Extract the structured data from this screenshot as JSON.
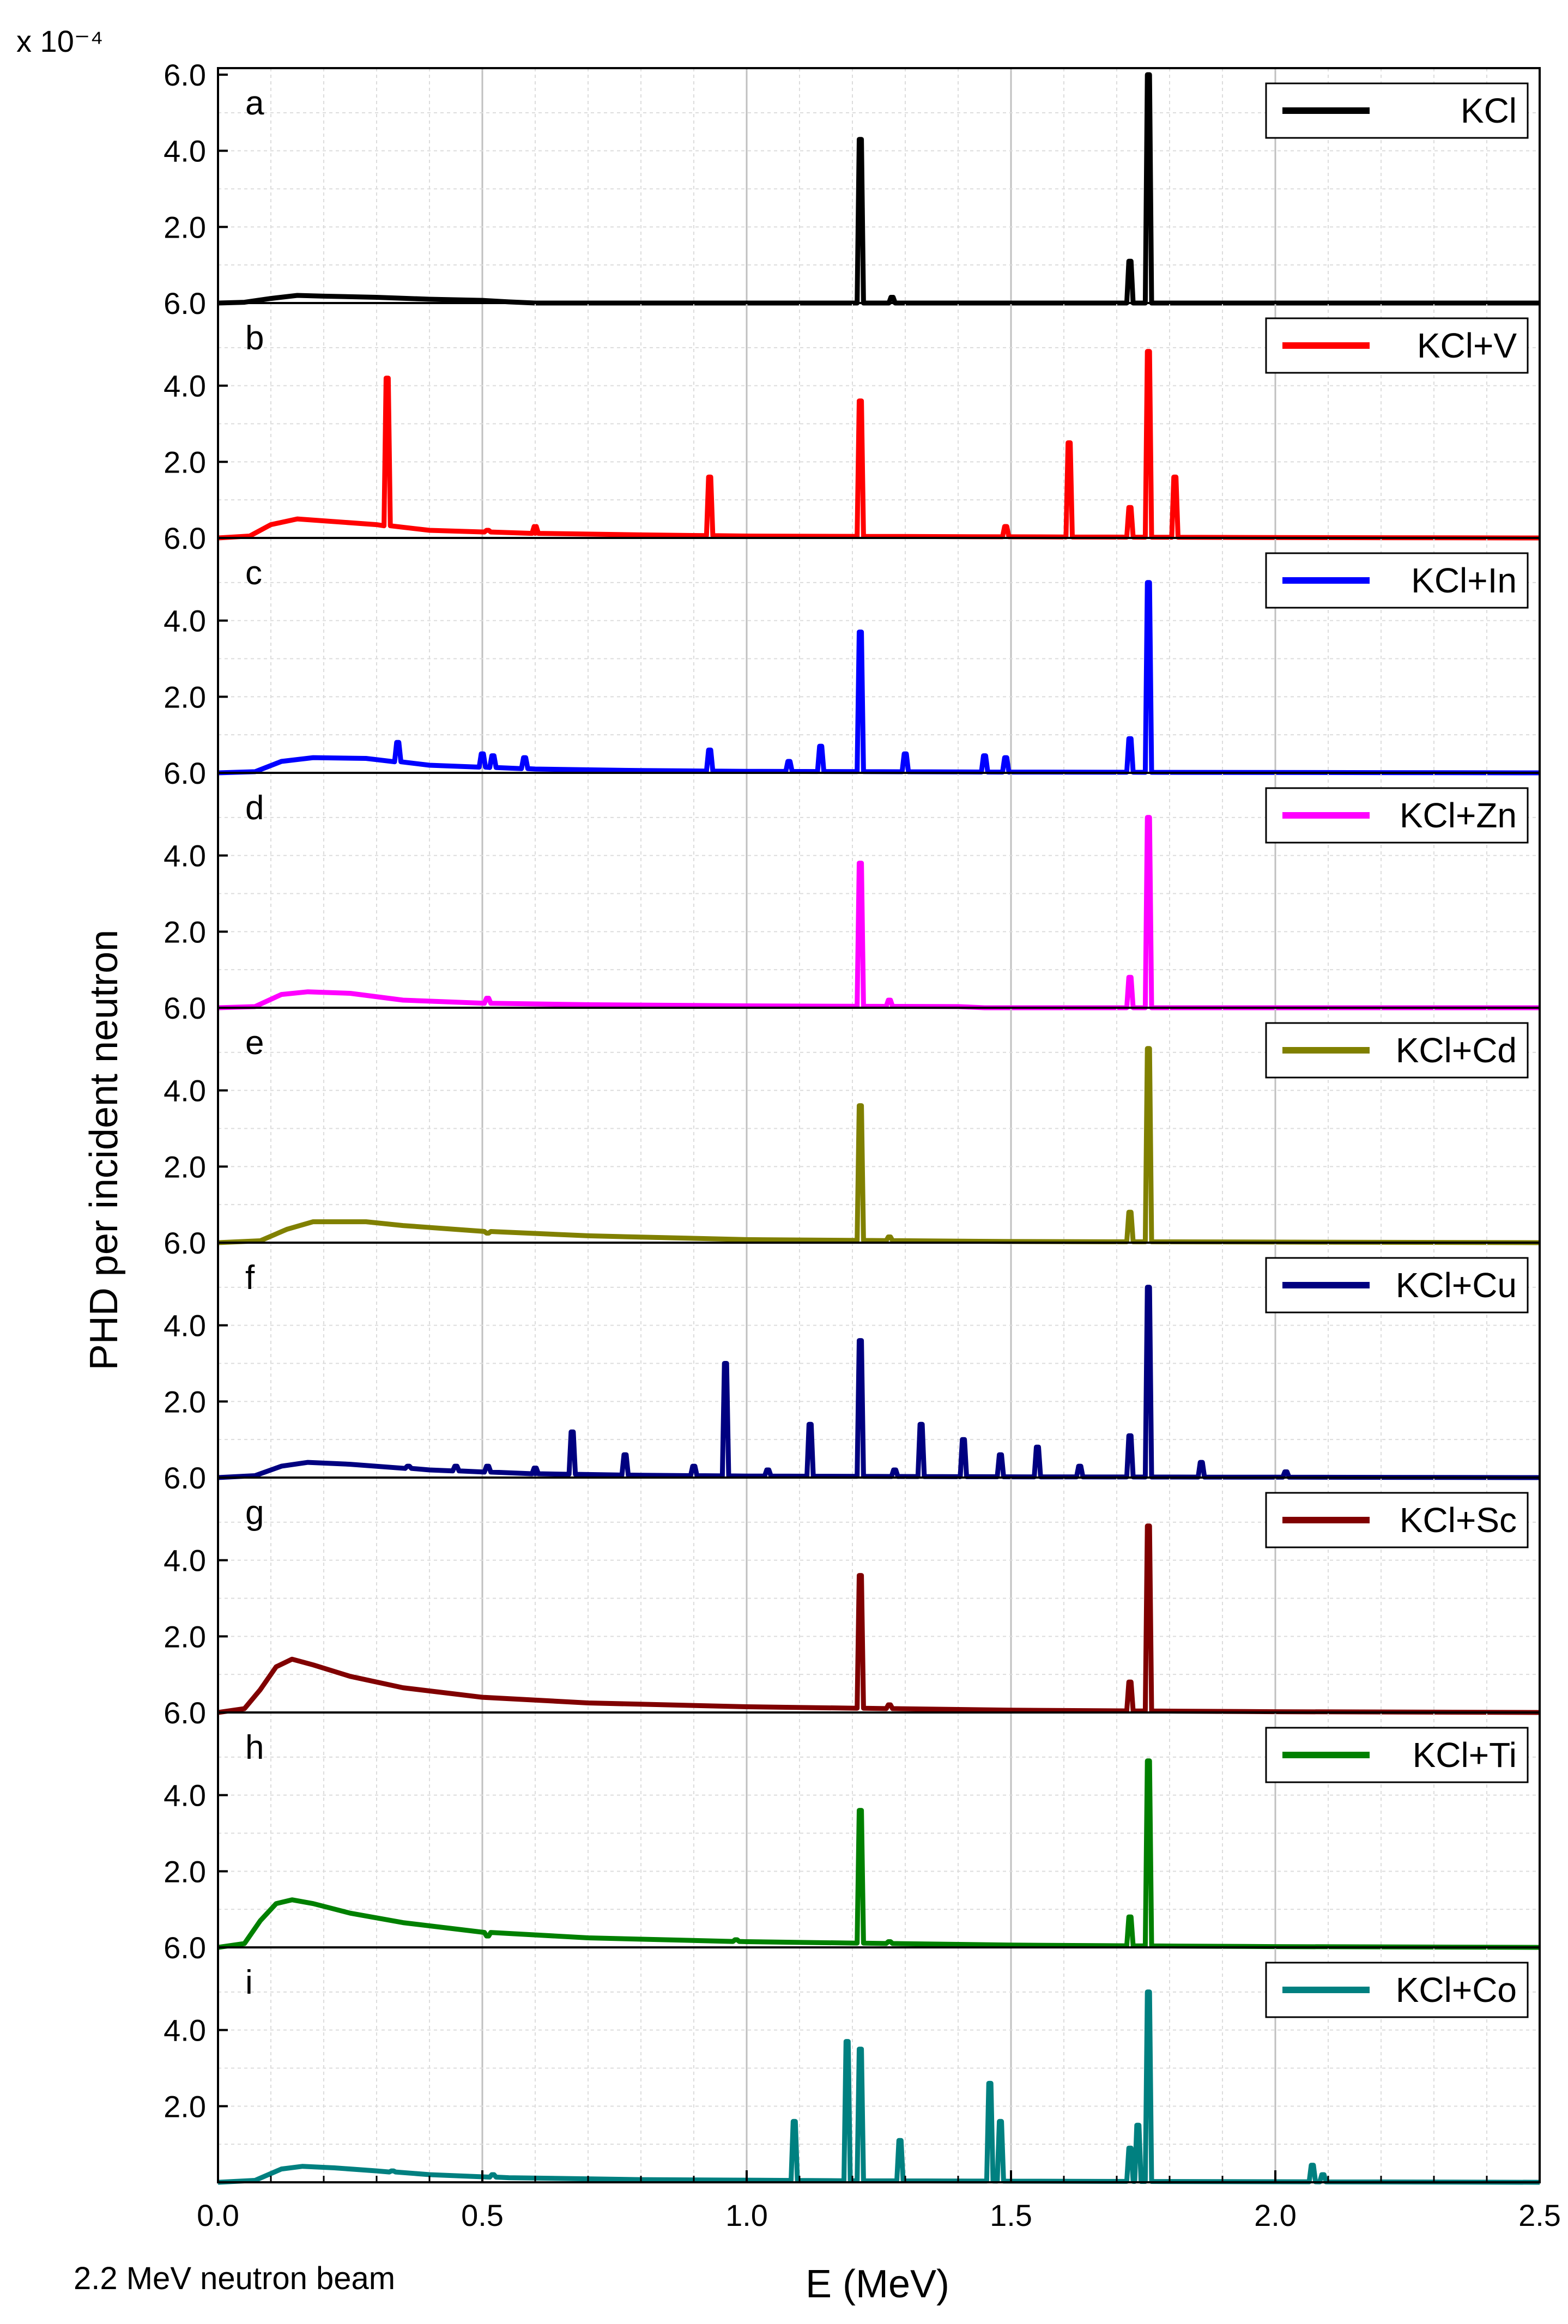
{
  "chart_data": {
    "type": "line",
    "layout": "stacked-panels",
    "x_axis": {
      "label": "E (MeV)",
      "range": [
        0.0,
        2.5
      ],
      "ticks": [
        "0.0",
        "0.5",
        "1.0",
        "1.5",
        "2.0",
        "2.5"
      ]
    },
    "y_axis": {
      "label": "PHD per incident neutron",
      "scale_multiplier": "x 10⁻⁴",
      "range": [
        0.0,
        6.0
      ],
      "tick_labels": [
        "6.0",
        "4.0",
        "2.0"
      ],
      "bottom_tick_label": "6.0"
    },
    "grid": true,
    "legend_placement": "top-right of each panel",
    "note": "2.2 MeV neutron beam",
    "panels": [
      {
        "letter": "a",
        "legend": "KCl",
        "color": "#000000",
        "continuum": [
          [
            0.0,
            0.0
          ],
          [
            0.05,
            0.02
          ],
          [
            0.1,
            0.12
          ],
          [
            0.15,
            0.2
          ],
          [
            0.2,
            0.18
          ],
          [
            0.3,
            0.15
          ],
          [
            0.4,
            0.1
          ],
          [
            0.5,
            0.07
          ],
          [
            0.55,
            0.03
          ],
          [
            0.6,
            0.0
          ],
          [
            2.5,
            0.0
          ]
        ],
        "peaks": [
          [
            1.215,
            4.3
          ],
          [
            1.275,
            0.15
          ],
          [
            1.725,
            1.1
          ],
          [
            1.76,
            6.0
          ]
        ]
      },
      {
        "letter": "b",
        "legend": "KCl+V",
        "color": "#ff0000",
        "continuum": [
          [
            0.0,
            0.0
          ],
          [
            0.06,
            0.05
          ],
          [
            0.1,
            0.35
          ],
          [
            0.15,
            0.5
          ],
          [
            0.2,
            0.45
          ],
          [
            0.3,
            0.35
          ],
          [
            0.4,
            0.2
          ],
          [
            0.6,
            0.12
          ],
          [
            0.8,
            0.08
          ],
          [
            1.0,
            0.05
          ],
          [
            1.5,
            0.03
          ],
          [
            2.0,
            0.01
          ],
          [
            2.5,
            0.0
          ]
        ],
        "peaks": [
          [
            0.32,
            4.2
          ],
          [
            0.51,
            0.2
          ],
          [
            0.6,
            0.3
          ],
          [
            0.93,
            1.6
          ],
          [
            1.215,
            3.6
          ],
          [
            1.49,
            0.3
          ],
          [
            1.61,
            2.5
          ],
          [
            1.725,
            0.8
          ],
          [
            1.76,
            4.9
          ],
          [
            1.81,
            1.6
          ]
        ]
      },
      {
        "letter": "c",
        "legend": "KCl+In",
        "color": "#0000ff",
        "continuum": [
          [
            0.0,
            0.0
          ],
          [
            0.07,
            0.03
          ],
          [
            0.12,
            0.3
          ],
          [
            0.18,
            0.4
          ],
          [
            0.28,
            0.38
          ],
          [
            0.4,
            0.2
          ],
          [
            0.6,
            0.1
          ],
          [
            0.8,
            0.06
          ],
          [
            1.0,
            0.04
          ],
          [
            1.5,
            0.02
          ],
          [
            2.5,
            0.0
          ]
        ],
        "peaks": [
          [
            0.34,
            0.8
          ],
          [
            0.5,
            0.5
          ],
          [
            0.52,
            0.45
          ],
          [
            0.58,
            0.4
          ],
          [
            0.93,
            0.6
          ],
          [
            1.08,
            0.3
          ],
          [
            1.14,
            0.7
          ],
          [
            1.215,
            3.7
          ],
          [
            1.3,
            0.5
          ],
          [
            1.45,
            0.45
          ],
          [
            1.49,
            0.4
          ],
          [
            1.725,
            0.9
          ],
          [
            1.76,
            5.0
          ]
        ]
      },
      {
        "letter": "d",
        "legend": "KCl+Zn",
        "color": "#ff00ff",
        "continuum": [
          [
            0.0,
            0.0
          ],
          [
            0.07,
            0.03
          ],
          [
            0.12,
            0.35
          ],
          [
            0.17,
            0.42
          ],
          [
            0.25,
            0.38
          ],
          [
            0.35,
            0.2
          ],
          [
            0.5,
            0.12
          ],
          [
            0.7,
            0.08
          ],
          [
            1.0,
            0.05
          ],
          [
            1.4,
            0.03
          ],
          [
            1.45,
            0.0
          ],
          [
            2.5,
            0.0
          ]
        ],
        "peaks": [
          [
            0.51,
            0.25
          ],
          [
            1.215,
            3.8
          ],
          [
            1.27,
            0.2
          ],
          [
            1.725,
            0.8
          ],
          [
            1.76,
            5.0
          ]
        ]
      },
      {
        "letter": "e",
        "legend": "KCl+Cd",
        "color": "#808000",
        "continuum": [
          [
            0.0,
            0.0
          ],
          [
            0.08,
            0.05
          ],
          [
            0.13,
            0.35
          ],
          [
            0.18,
            0.55
          ],
          [
            0.28,
            0.55
          ],
          [
            0.35,
            0.45
          ],
          [
            0.5,
            0.3
          ],
          [
            0.7,
            0.18
          ],
          [
            1.0,
            0.08
          ],
          [
            1.5,
            0.03
          ],
          [
            2.5,
            0.0
          ]
        ],
        "peaks": [
          [
            0.51,
            0.25
          ],
          [
            1.215,
            3.6
          ],
          [
            1.27,
            0.15
          ],
          [
            1.725,
            0.8
          ],
          [
            1.76,
            5.1
          ]
        ]
      },
      {
        "letter": "f",
        "legend": "KCl+Cu",
        "color": "#000080",
        "continuum": [
          [
            0.0,
            0.0
          ],
          [
            0.07,
            0.05
          ],
          [
            0.12,
            0.3
          ],
          [
            0.17,
            0.4
          ],
          [
            0.25,
            0.35
          ],
          [
            0.4,
            0.2
          ],
          [
            0.6,
            0.1
          ],
          [
            0.8,
            0.06
          ],
          [
            1.0,
            0.04
          ],
          [
            1.5,
            0.02
          ],
          [
            2.5,
            0.0
          ]
        ],
        "peaks": [
          [
            0.36,
            0.3
          ],
          [
            0.45,
            0.3
          ],
          [
            0.51,
            0.3
          ],
          [
            0.6,
            0.25
          ],
          [
            0.67,
            1.2
          ],
          [
            0.77,
            0.6
          ],
          [
            0.9,
            0.3
          ],
          [
            0.96,
            3.0
          ],
          [
            1.04,
            0.2
          ],
          [
            1.12,
            1.4
          ],
          [
            1.215,
            3.6
          ],
          [
            1.28,
            0.2
          ],
          [
            1.33,
            1.4
          ],
          [
            1.41,
            1.0
          ],
          [
            1.48,
            0.6
          ],
          [
            1.55,
            0.8
          ],
          [
            1.63,
            0.3
          ],
          [
            1.725,
            1.1
          ],
          [
            1.76,
            5.0
          ],
          [
            1.86,
            0.4
          ],
          [
            2.02,
            0.15
          ]
        ]
      },
      {
        "letter": "g",
        "legend": "KCl+Sc",
        "color": "#800000",
        "continuum": [
          [
            0.0,
            0.0
          ],
          [
            0.05,
            0.1
          ],
          [
            0.08,
            0.6
          ],
          [
            0.11,
            1.2
          ],
          [
            0.14,
            1.4
          ],
          [
            0.18,
            1.25
          ],
          [
            0.25,
            0.95
          ],
          [
            0.35,
            0.65
          ],
          [
            0.5,
            0.4
          ],
          [
            0.7,
            0.25
          ],
          [
            1.0,
            0.15
          ],
          [
            1.5,
            0.06
          ],
          [
            2.0,
            0.02
          ],
          [
            2.5,
            0.0
          ]
        ],
        "peaks": [
          [
            1.215,
            3.6
          ],
          [
            1.27,
            0.2
          ],
          [
            1.725,
            0.8
          ],
          [
            1.76,
            4.9
          ]
        ]
      },
      {
        "letter": "h",
        "legend": "KCl+Ti",
        "color": "#008000",
        "continuum": [
          [
            0.0,
            0.0
          ],
          [
            0.05,
            0.1
          ],
          [
            0.08,
            0.7
          ],
          [
            0.11,
            1.15
          ],
          [
            0.14,
            1.25
          ],
          [
            0.18,
            1.15
          ],
          [
            0.25,
            0.9
          ],
          [
            0.35,
            0.65
          ],
          [
            0.5,
            0.4
          ],
          [
            0.7,
            0.25
          ],
          [
            1.0,
            0.15
          ],
          [
            1.5,
            0.06
          ],
          [
            2.0,
            0.02
          ],
          [
            2.5,
            0.0
          ]
        ],
        "peaks": [
          [
            0.51,
            0.3
          ],
          [
            0.98,
            0.2
          ],
          [
            1.215,
            3.6
          ],
          [
            1.27,
            0.15
          ],
          [
            1.725,
            0.8
          ],
          [
            1.76,
            4.9
          ]
        ]
      },
      {
        "letter": "i",
        "legend": "KCl+Co",
        "color": "#008080",
        "continuum": [
          [
            0.0,
            0.0
          ],
          [
            0.07,
            0.05
          ],
          [
            0.12,
            0.35
          ],
          [
            0.16,
            0.42
          ],
          [
            0.22,
            0.38
          ],
          [
            0.3,
            0.3
          ],
          [
            0.4,
            0.2
          ],
          [
            0.55,
            0.12
          ],
          [
            0.8,
            0.07
          ],
          [
            1.2,
            0.04
          ],
          [
            1.8,
            0.02
          ],
          [
            2.5,
            0.0
          ]
        ],
        "peaks": [
          [
            0.33,
            0.3
          ],
          [
            0.52,
            0.2
          ],
          [
            1.09,
            1.6
          ],
          [
            1.19,
            3.7
          ],
          [
            1.215,
            3.5
          ],
          [
            1.29,
            1.1
          ],
          [
            1.46,
            2.6
          ],
          [
            1.48,
            1.6
          ],
          [
            1.725,
            0.9
          ],
          [
            1.74,
            1.5
          ],
          [
            1.76,
            5.0
          ],
          [
            2.07,
            0.45
          ],
          [
            2.09,
            0.2
          ]
        ]
      }
    ]
  }
}
